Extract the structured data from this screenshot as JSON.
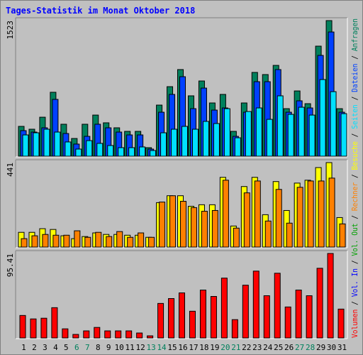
{
  "chart_data": [
    {
      "type": "bar",
      "title": "Tages-Statistik im Monat Oktober 2018",
      "ylim": [
        0,
        1523
      ],
      "yticks": [
        1523
      ],
      "series": [
        {
          "name": "Anfragen",
          "color": "#00805c",
          "values": [
            335,
            303,
            438,
            718,
            359,
            199,
            359,
            462,
            375,
            319,
            279,
            279,
            96,
            574,
            781,
            973,
            678,
            845,
            598,
            694,
            279,
            598,
            941,
            917,
            1020,
            534,
            733,
            590,
            1236,
            1523,
            534
          ]
        },
        {
          "name": "Dateien",
          "color": "#0040ff",
          "values": [
            287,
            271,
            319,
            638,
            255,
            136,
            223,
            359,
            319,
            271,
            239,
            239,
            80,
            494,
            694,
            893,
            534,
            765,
            518,
            542,
            223,
            494,
            837,
            837,
            973,
            494,
            622,
            542,
            1132,
            1395,
            494
          ]
        },
        {
          "name": "Seiten",
          "color": "#00e0ff",
          "values": [
            239,
            263,
            303,
            271,
            160,
            80,
            175,
            144,
            120,
            96,
            96,
            104,
            64,
            263,
            303,
            335,
            303,
            391,
            367,
            534,
            207,
            502,
            542,
            414,
            678,
            470,
            550,
            462,
            861,
            725,
            478
          ]
        }
      ]
    },
    {
      "type": "bar",
      "ylim": [
        0,
        441
      ],
      "yticks": [
        441
      ],
      "series": [
        {
          "name": "Besuche",
          "color": "#ffff00",
          "values": [
            77,
            77,
            96,
            92,
            59,
            44,
            55,
            74,
            66,
            66,
            62,
            62,
            51,
            232,
            268,
            268,
            213,
            221,
            221,
            364,
            110,
            316,
            364,
            169,
            342,
            191,
            334,
            349,
            415,
            441,
            154
          ]
        },
        {
          "name": "Rechner",
          "color": "#ff8000",
          "values": [
            44,
            59,
            66,
            62,
            62,
            85,
            51,
            77,
            55,
            81,
            51,
            74,
            51,
            235,
            268,
            239,
            206,
            187,
            191,
            349,
            99,
            283,
            345,
            136,
            301,
            125,
            312,
            345,
            345,
            360,
            121
          ]
        }
      ]
    },
    {
      "type": "bar",
      "ylim": [
        0,
        95.41
      ],
      "yticks": [
        95.41
      ],
      "categories": [
        "1",
        "2",
        "3",
        "4",
        "5",
        "6",
        "7",
        "8",
        "9",
        "10",
        "11",
        "12",
        "13",
        "14",
        "15",
        "16",
        "17",
        "18",
        "19",
        "20",
        "21",
        "22",
        "23",
        "24",
        "25",
        "26",
        "27",
        "28",
        "29",
        "30",
        "31"
      ],
      "category_colors": [
        "#000000",
        "#000000",
        "#000000",
        "#000000",
        "#000000",
        "#00805c",
        "#00805c",
        "#000000",
        "#000000",
        "#000000",
        "#000000",
        "#000000",
        "#00805c",
        "#00805c",
        "#000000",
        "#000000",
        "#000000",
        "#000000",
        "#000000",
        "#00805c",
        "#00805c",
        "#000000",
        "#000000",
        "#000000",
        "#000000",
        "#000000",
        "#00805c",
        "#00805c",
        "#000000",
        "#000000",
        "#000000"
      ],
      "series": [
        {
          "name": "Volumen",
          "color": "#ff0000",
          "values": [
            25.4,
            21.5,
            22.3,
            34.2,
            10.3,
            4.0,
            8.0,
            11.9,
            8.0,
            8.0,
            8.0,
            5.6,
            2.4,
            39.0,
            44.5,
            50.9,
            30.2,
            54.1,
            46.9,
            67.6,
            20.7,
            59.6,
            75.5,
            47.7,
            73.1,
            35.0,
            54.1,
            47.7,
            78.7,
            95.41,
            32.6
          ]
        }
      ],
      "legend_only": [
        {
          "name": "Vol. Out",
          "color": "#00a000"
        },
        {
          "name": "Vol. In",
          "color": "#0000ff"
        }
      ],
      "legend_separator": " / "
    }
  ]
}
